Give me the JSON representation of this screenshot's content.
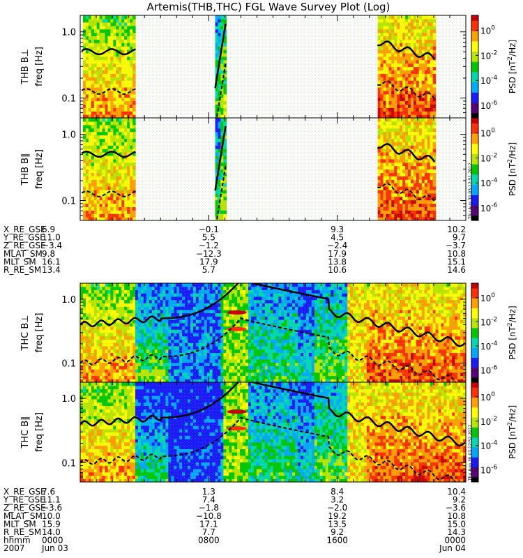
{
  "chart_data": {
    "type": "heatmap",
    "title": "Artemis(THB,THC) FGL Wave Survey Plot (Log)",
    "colorbar": {
      "label": "PSD [nT²/Hz]",
      "label_main": "PSD [nT",
      "label_sup": "2",
      "label_tail": "/Hz]",
      "ticks": [
        {
          "base": "10",
          "exp": "0",
          "log": 0
        },
        {
          "base": "10",
          "exp": "-2",
          "log": -2
        },
        {
          "base": "10",
          "exp": "-4",
          "log": -4
        },
        {
          "base": "10",
          "exp": "-6",
          "log": -6
        }
      ],
      "range_log": [
        -7,
        1.2
      ],
      "colors": [
        "#000000",
        "#5a007a",
        "#1a1aff",
        "#00a8ff",
        "#00d8b0",
        "#00c800",
        "#b8e600",
        "#ffff00",
        "#ffa000",
        "#ff3000",
        "#c80000"
      ]
    },
    "stamps": [
      "Thu Aug 30 03:12:51 2012",
      "Thu Aug 30 03:12:52 2012"
    ],
    "panels": [
      {
        "probe": "THB",
        "ylabel_probe": "THB B⊥",
        "ylabel_unit": "freq [Hz]",
        "yticks": [
          "1.0",
          "0.1"
        ],
        "ylog_range": [
          -1.3,
          0.25
        ]
      },
      {
        "probe": "THB",
        "ylabel_probe": "THB B∥",
        "ylabel_unit": "freq [Hz]",
        "yticks": [
          "1.0",
          "0.1"
        ],
        "ylog_range": [
          -1.3,
          0.25
        ]
      },
      {
        "probe": "THC",
        "ylabel_probe": "THC B⊥",
        "ylabel_unit": "freq [Hz]",
        "yticks": [
          "1.0",
          "0.1"
        ],
        "ylog_range": [
          -1.3,
          0.25
        ]
      },
      {
        "probe": "THC",
        "ylabel_probe": "THC B∥",
        "ylabel_unit": "freq [Hz]",
        "yticks": [
          "1.0",
          "0.1"
        ],
        "ylog_range": [
          -1.3,
          0.25
        ]
      }
    ],
    "thb_ephemeris": {
      "rows": [
        {
          "name": "X_RE_GSE",
          "values": [
            "6.9",
            "−0.1",
            "9.3",
            "10.2"
          ]
        },
        {
          "name": "Y_RE_GSE",
          "values": [
            "11.0",
            "5.5",
            "4.5",
            "9.7"
          ]
        },
        {
          "name": "Z_RE_GSE",
          "values": [
            "−3.4",
            "−1.2",
            "−2.4",
            "−3.7"
          ]
        },
        {
          "name": "MLAT_SM",
          "values": [
            "9.8",
            "−12.3",
            "17.9",
            "10.8"
          ]
        },
        {
          "name": "MLT_SM",
          "values": [
            "16.1",
            "17.9",
            "13.8",
            "15.1"
          ]
        },
        {
          "name": "R_RE_SM",
          "values": [
            "13.4",
            "5.7",
            "10.6",
            "14.6"
          ]
        }
      ]
    },
    "thc_ephemeris": {
      "rows": [
        {
          "name": "X_RE_GSE",
          "values": [
            "7.6",
            "1.3",
            "8.4",
            "10.4"
          ]
        },
        {
          "name": "Y_RE_GSE",
          "values": [
            "11.1",
            "7.4",
            "3.2",
            "9.2"
          ]
        },
        {
          "name": "Z_RE_GSE",
          "values": [
            "−3.6",
            "−1.8",
            "−2.0",
            "−3.6"
          ]
        },
        {
          "name": "MLAT_SM",
          "values": [
            "10.0",
            "−10.8",
            "19.2",
            "10.8"
          ]
        },
        {
          "name": "MLT_SM",
          "values": [
            "15.9",
            "17.1",
            "13.5",
            "15.0"
          ]
        },
        {
          "name": "R_RE_SM",
          "values": [
            "14.0",
            "7.7",
            "9.2",
            "14.3"
          ]
        },
        {
          "name": "hhmm",
          "values": [
            "0000",
            "0800",
            "1600",
            "0000"
          ]
        }
      ],
      "date_row": {
        "name": "2007",
        "values": [
          "Jun 03",
          "",
          "",
          "Jun 04"
        ]
      }
    },
    "time_range_hours": [
      0,
      24
    ],
    "data_windows_thb": [
      [
        0.1,
        3.45
      ],
      [
        8.4,
        9.1
      ],
      [
        18.5,
        22.1
      ]
    ],
    "data_windows_thc": [
      [
        0,
        24
      ]
    ]
  }
}
